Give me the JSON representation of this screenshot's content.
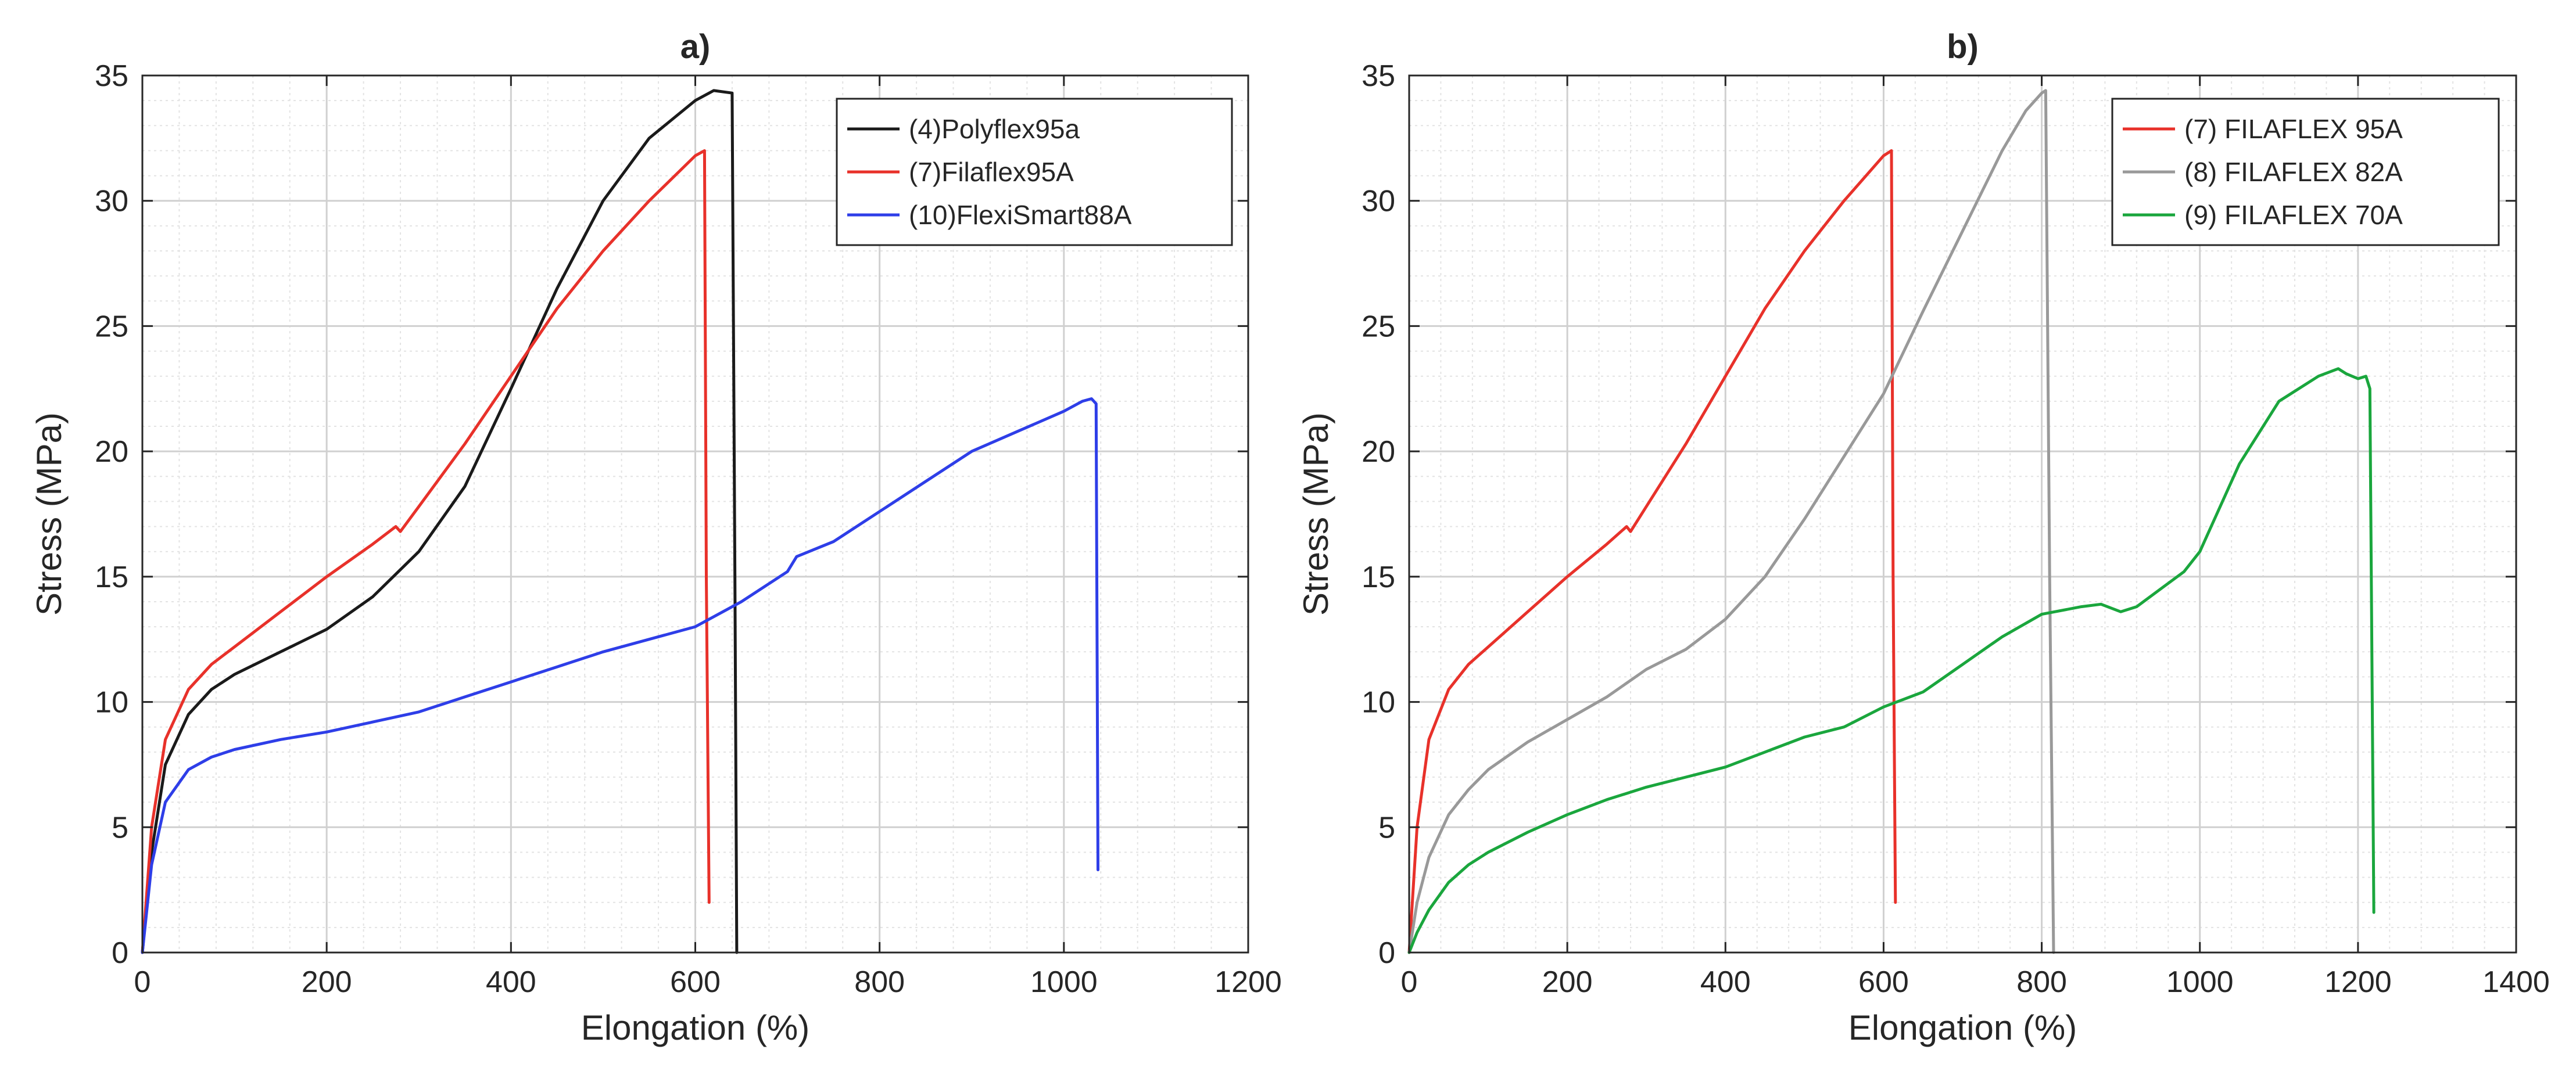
{
  "chart_data": [
    {
      "type": "line",
      "title": "a)",
      "xlabel": "Elongation (%)",
      "ylabel": "Stress (MPa)",
      "xlim": [
        0,
        1200
      ],
      "ylim": [
        0,
        35
      ],
      "xticks": [
        0,
        200,
        400,
        600,
        800,
        1000,
        1200
      ],
      "yticks": [
        0,
        5,
        10,
        15,
        20,
        25,
        30,
        35
      ],
      "xtick_labels": [
        "0",
        "200",
        "400",
        "600",
        "800",
        "1000",
        "1200"
      ],
      "ytick_labels": [
        "0",
        "5",
        "10",
        "15",
        "20",
        "25",
        "30",
        "35"
      ],
      "grid": true,
      "minor_grid": true,
      "legend_position": "top-right",
      "series": [
        {
          "name": "(4)Polyflex95a",
          "color": "#1a1a1a",
          "x": [
            0,
            10,
            25,
            50,
            75,
            100,
            150,
            200,
            250,
            300,
            350,
            400,
            450,
            500,
            550,
            600,
            620,
            640,
            643,
            645
          ],
          "y": [
            0,
            4,
            7.5,
            9.5,
            10.5,
            11.1,
            12,
            12.9,
            14.2,
            16,
            18.6,
            22.5,
            26.5,
            30,
            32.5,
            34,
            34.4,
            34.3,
            15,
            0
          ]
        },
        {
          "name": "(7)Filaflex95A",
          "color": "#e8312a",
          "x": [
            0,
            10,
            25,
            50,
            75,
            100,
            150,
            200,
            250,
            275,
            280,
            300,
            350,
            400,
            450,
            500,
            550,
            600,
            610,
            612,
            615
          ],
          "y": [
            0,
            5,
            8.5,
            10.5,
            11.5,
            12.2,
            13.6,
            15,
            16.3,
            17,
            16.8,
            17.8,
            20.3,
            23,
            25.7,
            28,
            30,
            31.8,
            32,
            15,
            2
          ]
        },
        {
          "name": "(10)FlexiSmart88A",
          "color": "#2e3ee8",
          "x": [
            0,
            10,
            25,
            50,
            75,
            100,
            150,
            200,
            250,
            300,
            350,
            400,
            450,
            500,
            550,
            600,
            650,
            700,
            710,
            750,
            800,
            850,
            900,
            950,
            1000,
            1020,
            1030,
            1035,
            1037
          ],
          "y": [
            0,
            3.5,
            6,
            7.3,
            7.8,
            8.1,
            8.5,
            8.8,
            9.2,
            9.6,
            10.2,
            10.8,
            11.4,
            12,
            12.5,
            13,
            14,
            15.2,
            15.8,
            16.4,
            17.6,
            18.8,
            20,
            20.8,
            21.6,
            22,
            22.1,
            21.9,
            3.3
          ]
        }
      ]
    },
    {
      "type": "line",
      "title": "b)",
      "xlabel": "Elongation (%)",
      "ylabel": "Stress (MPa)",
      "xlim": [
        0,
        1400
      ],
      "ylim": [
        0,
        35
      ],
      "xticks": [
        0,
        200,
        400,
        600,
        800,
        1000,
        1200,
        1400
      ],
      "yticks": [
        0,
        5,
        10,
        15,
        20,
        25,
        30,
        35
      ],
      "xtick_labels": [
        "0",
        "200",
        "400",
        "600",
        "800",
        "1000",
        "1200",
        "1400"
      ],
      "ytick_labels": [
        "0",
        "5",
        "10",
        "15",
        "20",
        "25",
        "30",
        "35"
      ],
      "grid": true,
      "minor_grid": true,
      "legend_position": "top-right",
      "series": [
        {
          "name": "(7) FILAFLEX 95A",
          "color": "#e8312a",
          "x": [
            0,
            10,
            25,
            50,
            75,
            100,
            150,
            200,
            250,
            275,
            280,
            300,
            350,
            400,
            450,
            500,
            550,
            600,
            610,
            612,
            615
          ],
          "y": [
            0,
            5,
            8.5,
            10.5,
            11.5,
            12.2,
            13.6,
            15,
            16.3,
            17,
            16.8,
            17.8,
            20.3,
            23,
            25.7,
            28,
            30,
            31.8,
            32,
            15,
            2
          ]
        },
        {
          "name": "(8) FILAFLEX 82A",
          "color": "#999999",
          "x": [
            0,
            10,
            25,
            50,
            75,
            100,
            150,
            200,
            250,
            300,
            350,
            400,
            450,
            500,
            550,
            600,
            650,
            700,
            750,
            780,
            800,
            805,
            810,
            815
          ],
          "y": [
            0,
            2,
            3.8,
            5.5,
            6.5,
            7.3,
            8.4,
            9.3,
            10.2,
            11.3,
            12.1,
            13.3,
            15,
            17.3,
            19.8,
            22.3,
            25.6,
            28.8,
            32,
            33.6,
            34.3,
            34.4,
            15,
            0
          ]
        },
        {
          "name": "(9) FILAFLEX 70A",
          "color": "#1aa63d",
          "x": [
            0,
            10,
            25,
            50,
            75,
            100,
            150,
            200,
            250,
            300,
            350,
            400,
            450,
            500,
            550,
            600,
            650,
            700,
            750,
            800,
            850,
            875,
            900,
            920,
            950,
            980,
            1000,
            1050,
            1100,
            1150,
            1175,
            1185,
            1200,
            1210,
            1215,
            1220
          ],
          "y": [
            0,
            0.8,
            1.7,
            2.8,
            3.5,
            4,
            4.8,
            5.5,
            6.1,
            6.6,
            7,
            7.4,
            8,
            8.6,
            9,
            9.8,
            10.4,
            11.5,
            12.6,
            13.5,
            13.8,
            13.9,
            13.6,
            13.8,
            14.5,
            15.2,
            16,
            19.5,
            22,
            23,
            23.3,
            23.1,
            22.9,
            23,
            22.5,
            1.6
          ]
        }
      ]
    }
  ]
}
